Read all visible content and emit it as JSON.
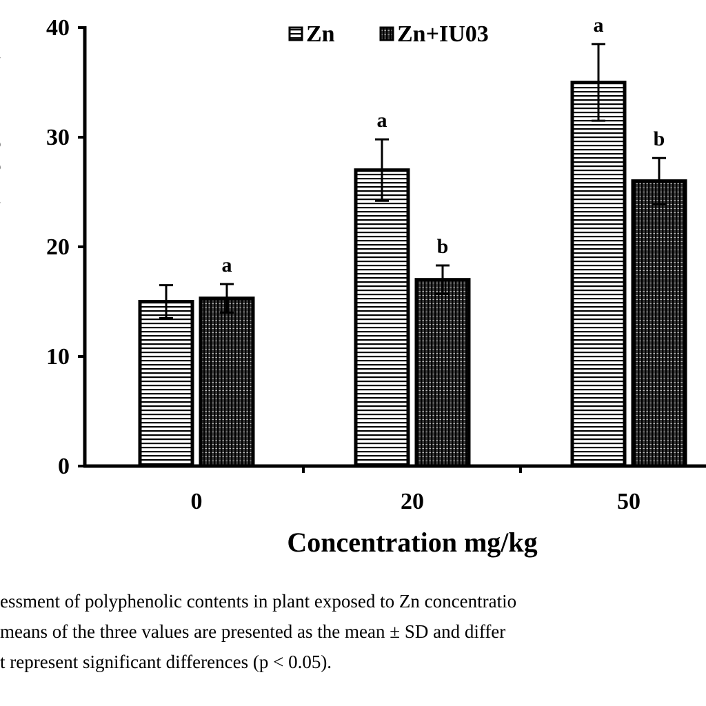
{
  "chart_data": {
    "type": "bar",
    "categories": [
      "0",
      "20",
      "50"
    ],
    "xlabel": "Concentration mg/kg",
    "ylabel_fragments": [
      "(",
      "g",
      "g",
      ")"
    ],
    "ylim": [
      0,
      40
    ],
    "yticks": [
      0,
      10,
      20,
      30,
      40
    ],
    "grid": false,
    "legend_position": "top-center",
    "series": [
      {
        "name": "Zn",
        "pattern": "horizontal-stripes",
        "values": [
          15.0,
          27.0,
          35.0
        ],
        "errors": [
          1.5,
          2.8,
          3.5
        ],
        "labels": [
          "",
          "a",
          "a"
        ]
      },
      {
        "name": "Zn+IU03",
        "pattern": "vertical-stripes",
        "values": [
          15.3,
          17.0,
          26.0
        ],
        "errors": [
          1.3,
          1.3,
          2.1
        ],
        "labels": [
          "a",
          "b",
          "b"
        ]
      }
    ]
  },
  "caption": {
    "lines": [
      "essment of polyphenolic contents in plant exposed to Zn concentratio",
      "means of the three values are presented as the mean ± SD and differ",
      "t represent significant differences (p < 0.05)."
    ]
  }
}
